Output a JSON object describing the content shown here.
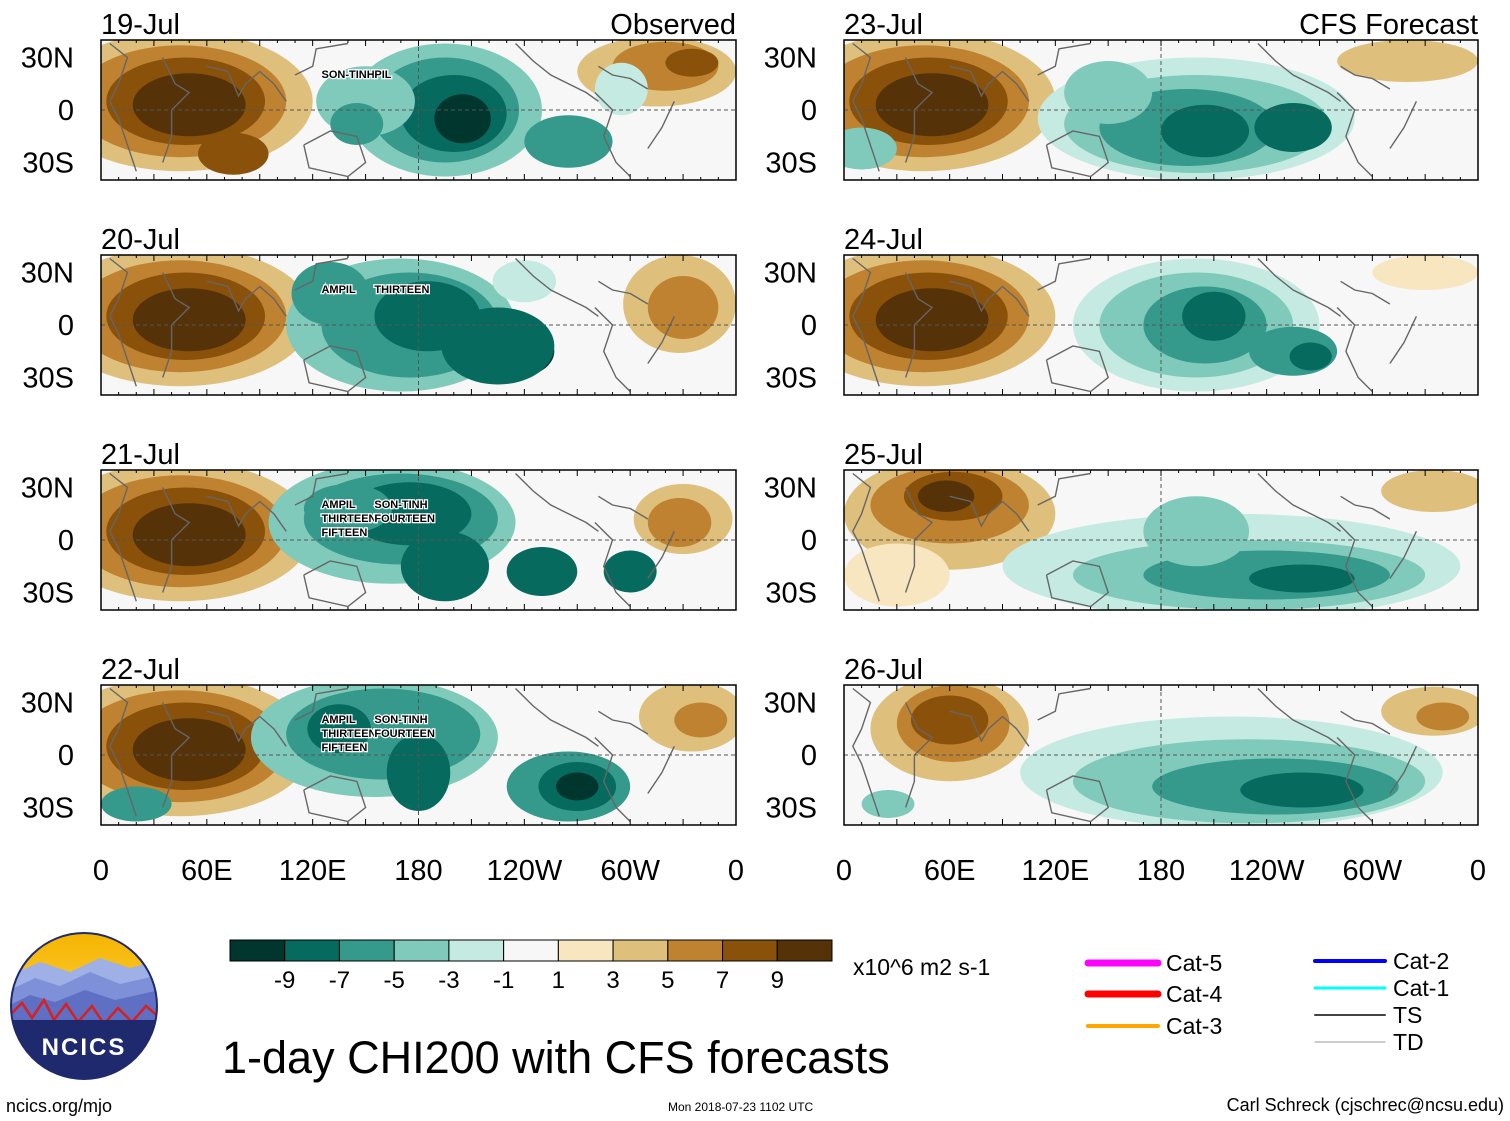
{
  "chart_data": {
    "type": "heatmap",
    "title": "1-day CHI200 with CFS forecasts",
    "units": "x10^6 m2 s-1",
    "colorbar": {
      "ticks": [
        "-9",
        "-7",
        "-5",
        "-3",
        "-1",
        "1",
        "3",
        "5",
        "7",
        "9"
      ],
      "colors": [
        "#00362e",
        "#066a5e",
        "#35998b",
        "#7fcabb",
        "#c5eae2",
        "#f7f7f7",
        "#f7e6bf",
        "#dec07c",
        "#bf8230",
        "#8a510a",
        "#553208"
      ]
    },
    "lat_ticks": [
      "30N",
      "0",
      "30S"
    ],
    "lon_ticks": [
      "0",
      "60E",
      "120E",
      "180",
      "120W",
      "60W",
      "0"
    ],
    "columns": {
      "left": "Observed",
      "right": "CFS Forecast"
    },
    "panels": [
      {
        "date": "19-Jul",
        "kind": "observed",
        "storms": [
          {
            "name": "SON-TINH"
          },
          {
            "name": "PIL"
          }
        ]
      },
      {
        "date": "20-Jul",
        "kind": "observed",
        "storms": [
          {
            "name": "AMPIL"
          },
          {
            "name": "THIRTEEN"
          }
        ]
      },
      {
        "date": "21-Jul",
        "kind": "observed",
        "storms": [
          {
            "name": "AMPIL"
          },
          {
            "name": "SON-TINH"
          },
          {
            "name": "THIRTEEN"
          },
          {
            "name": "FOURTEEN"
          },
          {
            "name": "FIFTEEN"
          }
        ]
      },
      {
        "date": "22-Jul",
        "kind": "observed",
        "storms": [
          {
            "name": "AMPIL"
          },
          {
            "name": "SON-TINH"
          },
          {
            "name": "THIRTEEN"
          },
          {
            "name": "FOURTEEN"
          },
          {
            "name": "FIFTEEN"
          }
        ]
      },
      {
        "date": "23-Jul",
        "kind": "forecast",
        "storms": []
      },
      {
        "date": "24-Jul",
        "kind": "forecast",
        "storms": []
      },
      {
        "date": "25-Jul",
        "kind": "forecast",
        "storms": []
      },
      {
        "date": "26-Jul",
        "kind": "forecast",
        "storms": []
      }
    ],
    "legend": [
      {
        "label": "Cat-5",
        "color": "#ff00ff"
      },
      {
        "label": "Cat-4",
        "color": "#ff0000"
      },
      {
        "label": "Cat-3",
        "color": "#ffa500"
      },
      {
        "label": "Cat-2",
        "color": "#0000ff"
      },
      {
        "label": "Cat-1",
        "color": "#00ffff"
      },
      {
        "label": "TS",
        "color": "#444444"
      },
      {
        "label": "TD",
        "color": "#999999"
      }
    ]
  },
  "footer": {
    "logo_text": "NCICS",
    "site": "ncics.org/mjo",
    "timestamp": "Mon 2018-07-23 1102 UTC",
    "author": "Carl Schreck (cjschrec@ncsu.edu)"
  }
}
